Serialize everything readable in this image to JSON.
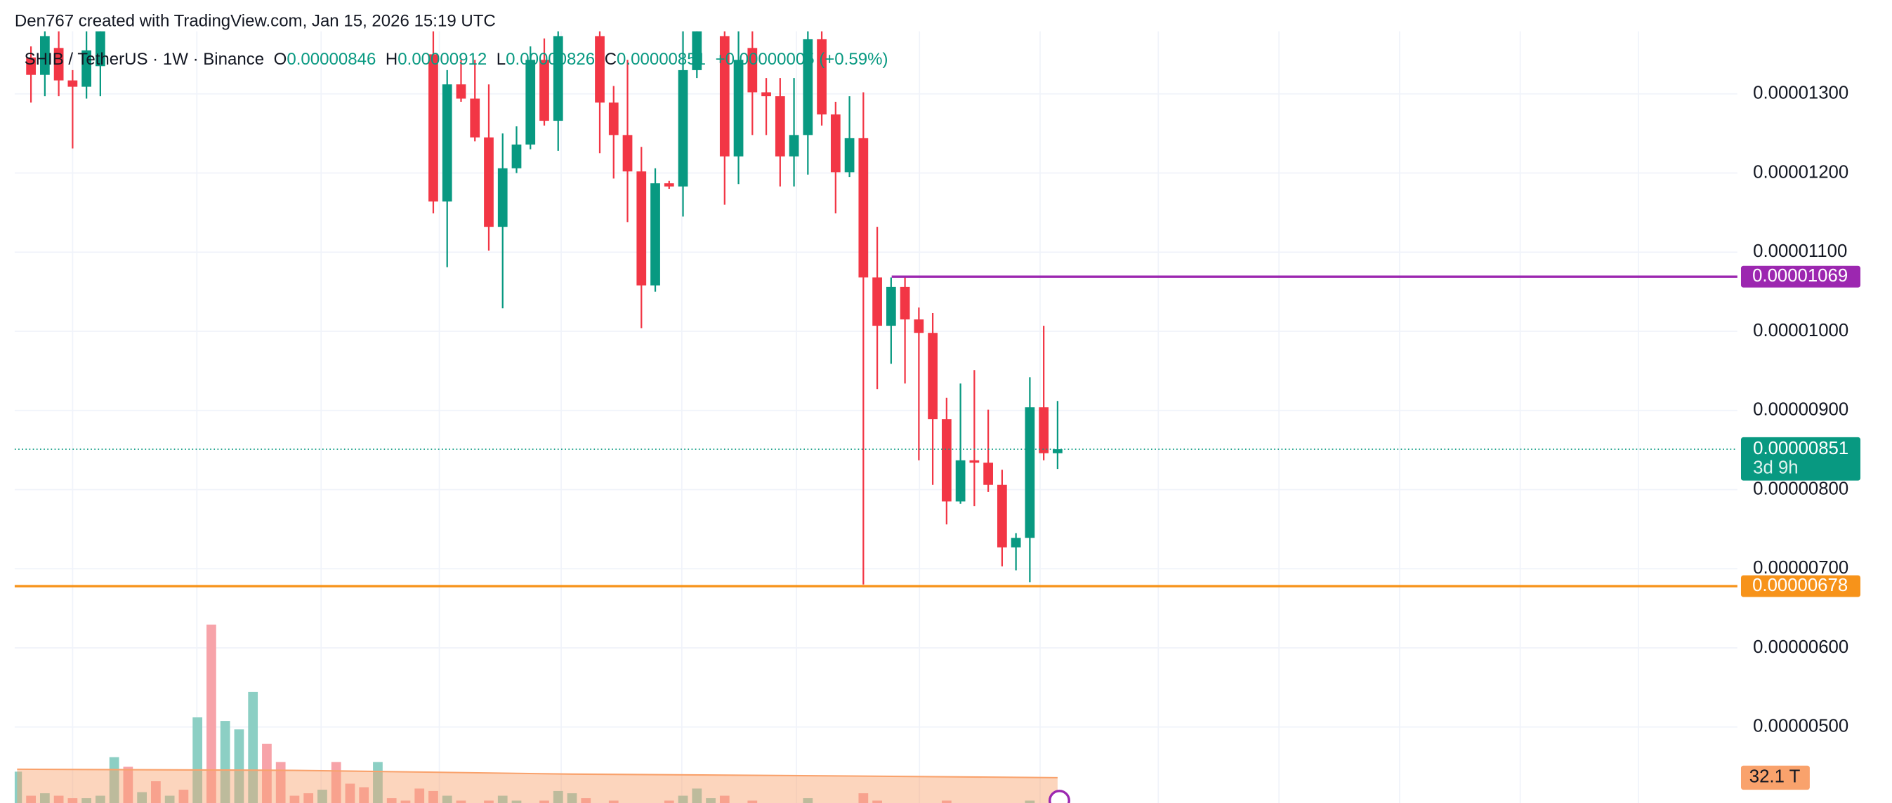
{
  "header": {
    "attribution": "Den767 created with TradingView.com, Jan 15, 2026 15:19 UTC"
  },
  "chart_data": {
    "type": "candlestick",
    "symbol": "SHIB / TetherUS · 1W · Binance",
    "legend": {
      "labels": [
        "O",
        "H",
        "L",
        "C"
      ],
      "values": [
        "0.00000846",
        "0.00000912",
        "0.00000826",
        "0.00000851"
      ],
      "change": "+0.00000005 (+0.59%)"
    },
    "up_color": "#089981",
    "down_color": "#f23645",
    "open": [
      null,
      1.346e-05,
      1.324e-05,
      1.358e-05,
      1.317e-05,
      1.309e-05,
      1.335e-05,
      null,
      null,
      null,
      null,
      null,
      null,
      null,
      null,
      null,
      null,
      null,
      null,
      null,
      null,
      null,
      null,
      null,
      null,
      null,
      null,
      null,
      null,
      null,
      1.35e-05,
      1.164e-05,
      1.312e-05,
      1.294e-05,
      1.245e-05,
      1.132e-05,
      1.206e-05,
      1.236e-05,
      1.343e-05,
      1.266e-05,
      null,
      null,
      1.373e-05,
      1.289e-05,
      1.248e-05,
      1.202e-05,
      1.058e-05,
      1.187e-05,
      1.183e-05,
      1.33e-05,
      null,
      1.373e-05,
      1.221e-05,
      1.358e-05,
      1.302e-05,
      1.297e-05,
      1.221e-05,
      1.248e-05,
      1.369e-05,
      1.274e-05,
      1.201e-05,
      1.244e-05,
      1.068e-05,
      1.007e-05,
      1.056e-05,
      1.015e-05,
      9.98e-06,
      8.89e-06,
      7.85e-06,
      8.37e-06,
      8.34e-06,
      8.06e-06,
      7.27e-06,
      7.39e-06,
      9.04e-06,
      8.46e-06
    ],
    "high": [
      null,
      1.36e-05,
      1.42e-05,
      1.42e-05,
      1.33e-05,
      1.38e-05,
      1.419e-05,
      null,
      null,
      null,
      null,
      null,
      null,
      null,
      null,
      null,
      null,
      null,
      null,
      null,
      null,
      null,
      null,
      null,
      null,
      null,
      null,
      null,
      null,
      null,
      1.44e-05,
      1.33e-05,
      1.343e-05,
      1.343e-05,
      1.312e-05,
      1.25e-05,
      1.259e-05,
      1.36e-05,
      1.37e-05,
      1.42e-05,
      null,
      null,
      1.43e-05,
      1.31e-05,
      1.343e-05,
      1.233e-05,
      1.206e-05,
      1.19e-05,
      1.38e-05,
      1.42e-05,
      null,
      1.43e-05,
      1.38e-05,
      1.4e-05,
      1.32e-05,
      1.32e-05,
      1.32e-05,
      1.38e-05,
      1.42e-05,
      1.29e-05,
      1.297e-05,
      1.302e-05,
      1.132e-05,
      1.068e-05,
      1.068e-05,
      1.03e-05,
      1.023e-05,
      9.16e-06,
      9.34e-06,
      9.51e-06,
      9.01e-06,
      8.25e-06,
      7.45e-06,
      9.42e-06,
      1.007e-05,
      9.12e-06
    ],
    "low": [
      null,
      1.289e-05,
      1.297e-05,
      1.297e-05,
      1.231e-05,
      1.294e-05,
      1.297e-05,
      null,
      null,
      null,
      null,
      null,
      null,
      null,
      null,
      null,
      null,
      null,
      null,
      null,
      null,
      null,
      null,
      null,
      null,
      null,
      null,
      null,
      null,
      null,
      1.149e-05,
      1.081e-05,
      1.29e-05,
      1.24e-05,
      1.102e-05,
      1.029e-05,
      1.2e-05,
      1.23e-05,
      1.26e-05,
      1.228e-05,
      null,
      null,
      1.225e-05,
      1.193e-05,
      1.138e-05,
      1.004e-05,
      1.05e-05,
      1.18e-05,
      1.145e-05,
      1.32e-05,
      null,
      1.16e-05,
      1.186e-05,
      1.248e-05,
      1.248e-05,
      1.183e-05,
      1.183e-05,
      1.198e-05,
      1.26e-05,
      1.149e-05,
      1.195e-05,
      6.8e-06,
      9.27e-06,
      9.59e-06,
      9.34e-06,
      8.37e-06,
      8.06e-06,
      7.56e-06,
      7.82e-06,
      7.79e-06,
      7.97e-06,
      7.03e-06,
      6.98e-06,
      6.83e-06,
      8.37e-06,
      8.26e-06
    ],
    "close": [
      null,
      1.324e-05,
      1.373e-05,
      1.317e-05,
      1.309e-05,
      1.355e-05,
      1.381e-05,
      null,
      null,
      null,
      null,
      null,
      null,
      null,
      null,
      null,
      null,
      null,
      null,
      null,
      null,
      null,
      null,
      null,
      null,
      null,
      null,
      null,
      null,
      null,
      1.164e-05,
      1.312e-05,
      1.294e-05,
      1.245e-05,
      1.132e-05,
      1.206e-05,
      1.236e-05,
      1.343e-05,
      1.266e-05,
      1.373e-05,
      null,
      null,
      1.289e-05,
      1.248e-05,
      1.202e-05,
      1.058e-05,
      1.187e-05,
      1.183e-05,
      1.33e-05,
      1.381e-05,
      null,
      1.221e-05,
      1.343e-05,
      1.302e-05,
      1.297e-05,
      1.221e-05,
      1.248e-05,
      1.369e-05,
      1.274e-05,
      1.201e-05,
      1.244e-05,
      1.068e-05,
      1.007e-05,
      1.056e-05,
      1.015e-05,
      9.98e-06,
      8.89e-06,
      7.85e-06,
      8.37e-06,
      8.34e-06,
      8.06e-06,
      7.27e-06,
      7.39e-06,
      9.04e-06,
      8.46e-06,
      8.51e-06
    ],
    "ylim": [
      4.04e-06,
      1.379e-05
    ],
    "yticks": [
      {
        "value": 1.3e-05,
        "label": "0.00001300"
      },
      {
        "value": 1.2e-05,
        "label": "0.00001200"
      },
      {
        "value": 1.1e-05,
        "label": "0.00001100"
      },
      {
        "value": 1e-05,
        "label": "0.00001000"
      },
      {
        "value": 9e-06,
        "label": "0.00000900"
      },
      {
        "value": 8e-06,
        "label": "0.00000800"
      },
      {
        "value": 7e-06,
        "label": "0.00000700"
      },
      {
        "value": 6e-06,
        "label": "0.00000600"
      },
      {
        "value": 5e-06,
        "label": "0.00000500"
      }
    ],
    "grid": true,
    "price_lines": [
      {
        "value": 1.069e-05,
        "label": "0.00001069",
        "color": "#9c27b0"
      },
      {
        "value": 6.78e-06,
        "label": "0.00000678",
        "color": "#f7931a"
      }
    ],
    "last_price": {
      "value": 8.51e-06,
      "label": "0.00000851",
      "countdown": "3d 9h",
      "color": "#089981"
    },
    "volume": {
      "ylim": [
        0,
        138
      ],
      "values": [
        35.3,
        22.5,
        23.8,
        22.5,
        21.2,
        21.2,
        22.5,
        43,
        37.9,
        24.4,
        30.2,
        22.5,
        25.7,
        64.2,
        113.6,
        62.3,
        57.8,
        77.7,
        50.1,
        40.4,
        22.5,
        23.8,
        25.7,
        40.4,
        28.9,
        27,
        40.4,
        21.2,
        19.9,
        26.3,
        25,
        22.5,
        19.9,
        18.6,
        19.9,
        22.5,
        19.9,
        18.6,
        19.9,
        25,
        23.8,
        21.2,
        18.6,
        19.9,
        18.6,
        17.3,
        18.6,
        19.9,
        22.5,
        26.3,
        21.2,
        22.5,
        18.6,
        19.9,
        17.3,
        18.6,
        17.3,
        21.2,
        18.6,
        17.3,
        17.3,
        23.8,
        19.9,
        18.6,
        17.3,
        17.3,
        18.6,
        19.9,
        17.3,
        17.3,
        17.3,
        18.6,
        17.3,
        19.9,
        18.6,
        14.8
      ],
      "colors": [
        "#8ccfc4",
        "#f7a3a9",
        "#8ccfc4",
        "#f7a3a9",
        "#f7a3a9",
        "#8ccfc4",
        "#8ccfc4",
        "#8ccfc4",
        "#f7a3a9",
        "#8ccfc4",
        "#f7a3a9",
        "#8ccfc4",
        "#f7a3a9",
        "#8ccfc4",
        "#f7a3a9",
        "#8ccfc4",
        "#8ccfc4",
        "#8ccfc4",
        "#f7a3a9",
        "#f7a3a9",
        "#f7a3a9",
        "#f7a3a9",
        "#8ccfc4",
        "#f7a3a9",
        "#f7a3a9",
        "#f7a3a9",
        "#8ccfc4",
        "#f7a3a9",
        "#f7a3a9",
        "#f7a3a9",
        "#f7a3a9",
        "#8ccfc4",
        "#f7a3a9",
        "#f7a3a9",
        "#f7a3a9",
        "#8ccfc4",
        "#8ccfc4",
        "#8ccfc4",
        "#f7a3a9",
        "#8ccfc4",
        "#8ccfc4",
        "#f7a3a9",
        "#f7a3a9",
        "#f7a3a9",
        "#f7a3a9",
        "#f7a3a9",
        "#8ccfc4",
        "#f7a3a9",
        "#8ccfc4",
        "#8ccfc4",
        "#8ccfc4",
        "#f7a3a9",
        "#8ccfc4",
        "#f7a3a9",
        "#f7a3a9",
        "#f7a3a9",
        "#8ccfc4",
        "#8ccfc4",
        "#f7a3a9",
        "#f7a3a9",
        "#8ccfc4",
        "#f7a3a9",
        "#f7a3a9",
        "#8ccfc4",
        "#f7a3a9",
        "#f7a3a9",
        "#f7a3a9",
        "#f7a3a9",
        "#8ccfc4",
        "#f7a3a9",
        "#f7a3a9",
        "#f7a3a9",
        "#8ccfc4",
        "#8ccfc4",
        "#f7a3a9",
        "#8ccfc4"
      ]
    },
    "volume_ma": {
      "x": [
        0,
        20,
        40,
        60,
        75
      ],
      "values": [
        36.6,
        36,
        34,
        33,
        32.1
      ],
      "label": "32.1 T",
      "color": "#f9a26c"
    }
  }
}
